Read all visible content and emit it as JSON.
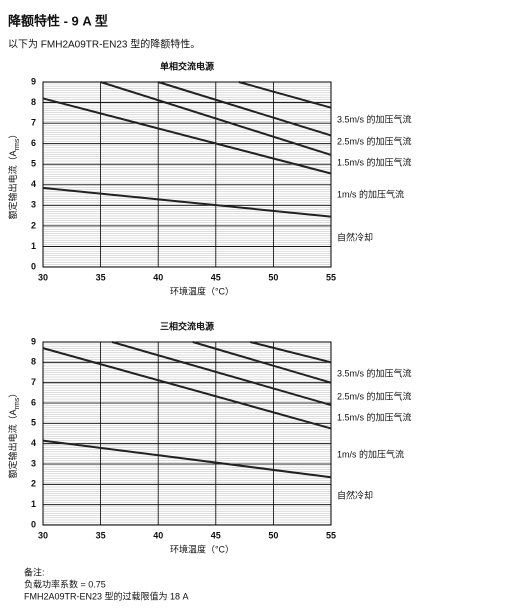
{
  "header": {
    "title": "降额特性 - 9 A 型",
    "subtitle": "以下为 FMH2A09TR-EN23 型的降额特性。"
  },
  "chart_data": [
    {
      "type": "line",
      "title": "单相交流电源",
      "x_label": "环境温度（°C）",
      "y_label": "额定输出电流（A",
      "y_label_sub": "rms",
      "y_label_end": "）",
      "xlim": [
        30,
        55
      ],
      "xticks": [
        30,
        35,
        40,
        45,
        50,
        55
      ],
      "ylim": [
        0,
        9
      ],
      "yticks": [
        0,
        1,
        2,
        3,
        4,
        5,
        6,
        7,
        8,
        9
      ],
      "grid": true,
      "series": [
        {
          "name": "自然冷却",
          "color": "#222222",
          "x": [
            30,
            55
          ],
          "values": [
            3.85,
            2.45
          ]
        },
        {
          "name": "1m/s 的加压气流",
          "color": "#222222",
          "x": [
            30,
            55
          ],
          "values": [
            8.2,
            4.55
          ]
        },
        {
          "name": "1.5m/s 的加压气流",
          "color": "#222222",
          "x": [
            35,
            55
          ],
          "values": [
            9,
            5.45
          ]
        },
        {
          "name": "2.5m/s 的加压气流",
          "color": "#222222",
          "x": [
            40,
            55
          ],
          "values": [
            9,
            6.4
          ]
        },
        {
          "name": "3.5m/s 的加压气流",
          "color": "#222222",
          "x": [
            47,
            55
          ],
          "values": [
            9,
            7.75
          ]
        }
      ]
    },
    {
      "type": "line",
      "title": "三相交流电源",
      "x_label": "环境温度（°C）",
      "y_label": "额定输出电流（A",
      "y_label_sub": "rms",
      "y_label_end": "）",
      "xlim": [
        30,
        55
      ],
      "xticks": [
        30,
        35,
        40,
        45,
        50,
        55
      ],
      "ylim": [
        0,
        9
      ],
      "yticks": [
        0,
        1,
        2,
        3,
        4,
        5,
        6,
        7,
        8,
        9
      ],
      "grid": true,
      "series": [
        {
          "name": "自然冷却",
          "color": "#222222",
          "x": [
            30,
            55
          ],
          "values": [
            4.15,
            2.35
          ]
        },
        {
          "name": "1m/s 的加压气流",
          "color": "#222222",
          "x": [
            30,
            55
          ],
          "values": [
            8.7,
            4.75
          ]
        },
        {
          "name": "1.5m/s 的加压气流",
          "color": "#222222",
          "x": [
            36,
            55
          ],
          "values": [
            9,
            5.9
          ]
        },
        {
          "name": "2.5m/s 的加压气流",
          "color": "#222222",
          "x": [
            43,
            55
          ],
          "values": [
            9,
            7.0
          ]
        },
        {
          "name": "3.5m/s 的加压气流",
          "color": "#222222",
          "x": [
            48,
            55
          ],
          "values": [
            9,
            8.0
          ]
        }
      ]
    }
  ],
  "notes": [
    "备注:",
    "负载功率系数 = 0.75",
    "FMH2A09TR-EN23 型的过载限值为 18 A"
  ]
}
